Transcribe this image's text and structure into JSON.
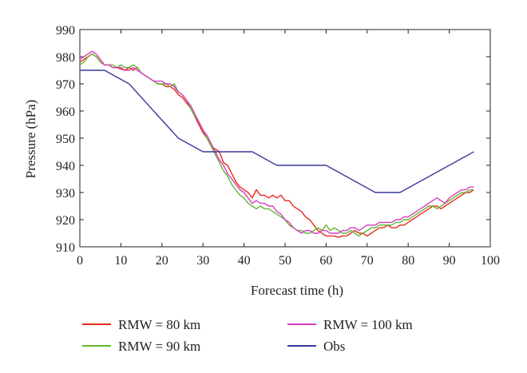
{
  "chart_data": {
    "type": "line",
    "xlabel": "Forecast time (h)",
    "ylabel": "Pressure (hPa)",
    "xlim": [
      0,
      100
    ],
    "ylim": [
      910,
      990
    ],
    "xticks": [
      0,
      10,
      20,
      30,
      40,
      50,
      60,
      70,
      80,
      90,
      100
    ],
    "yticks": [
      910,
      920,
      930,
      940,
      950,
      960,
      970,
      980,
      990
    ],
    "grid": false,
    "legend_position": "bottom",
    "series": [
      {
        "name": "RMW = 80 km",
        "color": "#e8291c",
        "x": [
          0,
          1,
          2,
          3,
          4,
          5,
          6,
          7,
          8,
          9,
          10,
          11,
          12,
          13,
          14,
          15,
          16,
          17,
          18,
          19,
          20,
          21,
          22,
          23,
          24,
          25,
          26,
          27,
          28,
          29,
          30,
          31,
          32,
          33,
          34,
          35,
          36,
          37,
          38,
          39,
          40,
          41,
          42,
          43,
          44,
          45,
          46,
          47,
          48,
          49,
          50,
          51,
          52,
          53,
          54,
          55,
          56,
          57,
          58,
          59,
          60,
          61,
          62,
          63,
          64,
          65,
          66,
          67,
          68,
          69,
          70,
          71,
          72,
          73,
          74,
          75,
          76,
          77,
          78,
          79,
          80,
          81,
          82,
          83,
          84,
          85,
          86,
          87,
          88,
          89,
          90,
          91,
          92,
          93,
          94,
          95,
          96
        ],
        "y": [
          978,
          979,
          980,
          981,
          980,
          978,
          977,
          977,
          976,
          976,
          975.5,
          975,
          976,
          975,
          976,
          974,
          973,
          972,
          971,
          970,
          970,
          969,
          969,
          968,
          966,
          965,
          963,
          961,
          958,
          955,
          952,
          950,
          947,
          946,
          945,
          941,
          940,
          937,
          934,
          932,
          931,
          930,
          928,
          931,
          929,
          929,
          928,
          929,
          928,
          929,
          927,
          927,
          925,
          924,
          923,
          921,
          920,
          918,
          916,
          915,
          914,
          914,
          914,
          913.5,
          914,
          914,
          915,
          916,
          915,
          915,
          914,
          915,
          916,
          917,
          917,
          918,
          917,
          917,
          918,
          918,
          919,
          920,
          921,
          922,
          923,
          924,
          925,
          925,
          924,
          925,
          926,
          927,
          928,
          929,
          930,
          930,
          931
        ]
      },
      {
        "name": "RMW = 90 km",
        "color": "#5fb832",
        "x": [
          0,
          1,
          2,
          3,
          4,
          5,
          6,
          7,
          8,
          9,
          10,
          11,
          12,
          13,
          14,
          15,
          16,
          17,
          18,
          19,
          20,
          21,
          22,
          23,
          24,
          25,
          26,
          27,
          28,
          29,
          30,
          31,
          32,
          33,
          34,
          35,
          36,
          37,
          38,
          39,
          40,
          41,
          42,
          43,
          44,
          45,
          46,
          47,
          48,
          49,
          50,
          51,
          52,
          53,
          54,
          55,
          56,
          57,
          58,
          59,
          60,
          61,
          62,
          63,
          64,
          65,
          66,
          67,
          68,
          69,
          70,
          71,
          72,
          73,
          74,
          75,
          76,
          77,
          78,
          79,
          80,
          81,
          82,
          83,
          84,
          85,
          86,
          87,
          88,
          89,
          90,
          91,
          92,
          93,
          94,
          95,
          96
        ],
        "y": [
          977,
          978,
          980,
          981,
          980,
          978,
          977,
          977,
          977,
          976,
          977,
          976,
          976,
          977,
          976,
          974,
          973,
          972,
          971,
          970,
          970,
          970,
          969,
          970,
          967,
          966,
          964,
          961,
          958,
          956,
          953,
          950,
          947,
          944,
          941,
          938,
          936,
          933,
          931,
          929,
          928,
          926,
          925,
          924,
          925,
          924,
          924,
          923,
          922,
          921,
          920,
          918,
          917,
          916,
          916,
          915,
          915,
          916,
          917,
          916,
          918,
          916,
          917,
          916,
          915,
          915,
          916,
          915,
          914,
          915,
          916,
          917,
          917,
          918,
          918,
          918,
          918,
          919,
          919,
          920,
          920,
          921,
          922,
          923,
          924,
          925,
          925,
          924,
          925,
          926,
          927,
          928,
          929,
          930,
          930,
          931,
          931
        ]
      },
      {
        "name": "RMW = 100 km",
        "color": "#d83cc0",
        "x": [
          0,
          1,
          2,
          3,
          4,
          5,
          6,
          7,
          8,
          9,
          10,
          11,
          12,
          13,
          14,
          15,
          16,
          17,
          18,
          19,
          20,
          21,
          22,
          23,
          24,
          25,
          26,
          27,
          28,
          29,
          30,
          31,
          32,
          33,
          34,
          35,
          36,
          37,
          38,
          39,
          40,
          41,
          42,
          43,
          44,
          45,
          46,
          47,
          48,
          49,
          50,
          51,
          52,
          53,
          54,
          55,
          56,
          57,
          58,
          59,
          60,
          61,
          62,
          63,
          64,
          65,
          66,
          67,
          68,
          69,
          70,
          71,
          72,
          73,
          74,
          75,
          76,
          77,
          78,
          79,
          80,
          81,
          82,
          83,
          84,
          85,
          86,
          87,
          88,
          89,
          90,
          91,
          92,
          93,
          94,
          95,
          96
        ],
        "y": [
          979,
          980,
          981,
          982,
          981,
          979,
          977,
          977,
          976,
          976,
          976,
          975,
          975,
          976,
          975,
          974,
          973,
          972,
          971,
          971,
          971,
          970,
          970,
          969,
          967,
          966,
          964,
          962,
          959,
          956,
          953,
          951,
          948,
          945,
          942,
          940,
          937,
          935,
          933,
          931,
          930,
          928,
          926,
          927,
          926,
          926,
          925,
          925,
          923,
          922,
          920,
          919,
          917,
          916,
          915,
          916,
          916,
          915,
          915,
          916,
          916,
          915,
          915,
          915,
          916,
          916,
          917,
          917,
          916,
          917,
          918,
          918,
          918,
          919,
          919,
          919,
          919,
          920,
          920,
          921,
          921,
          922,
          923,
          924,
          925,
          926,
          927,
          928,
          927,
          926,
          928,
          929,
          930,
          931,
          931,
          932,
          932
        ]
      },
      {
        "name": "Obs",
        "color": "#3a3a9c",
        "x": [
          0,
          6,
          12,
          18,
          24,
          30,
          36,
          42,
          48,
          54,
          60,
          66,
          72,
          78,
          84,
          90,
          96
        ],
        "y": [
          975,
          975,
          970,
          960,
          950,
          945,
          945,
          945,
          940,
          940,
          940,
          935,
          930,
          930,
          935,
          940,
          945
        ]
      }
    ]
  }
}
